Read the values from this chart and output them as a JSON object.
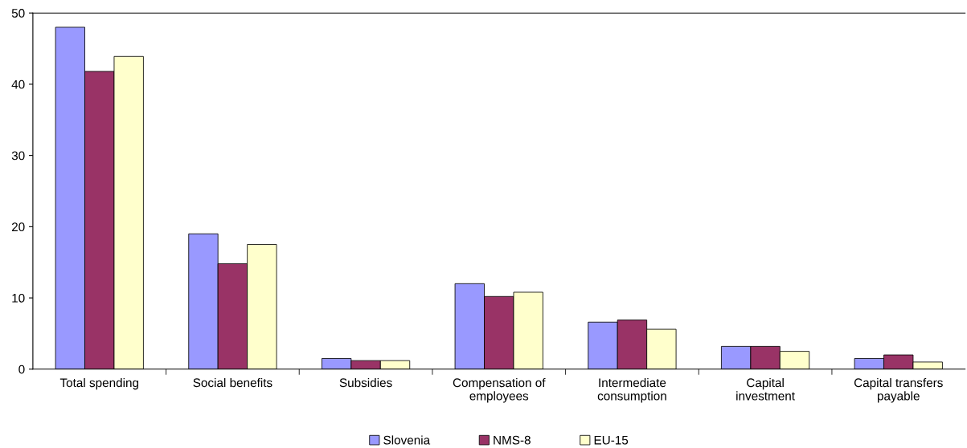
{
  "chart_data": {
    "type": "bar",
    "categories": [
      "Total spending",
      "Social benefits",
      "Subsidies",
      "Compensation of\nemployees",
      "Intermediate\nconsumption",
      "Capital\ninvestment",
      "Capital transfers\npayable"
    ],
    "series": [
      {
        "name": "Slovenia",
        "color": "#9999ff",
        "values": [
          48.0,
          19.0,
          1.5,
          12.0,
          6.6,
          3.2,
          1.5
        ]
      },
      {
        "name": "NMS-8",
        "color": "#993366",
        "values": [
          41.8,
          14.8,
          1.2,
          10.2,
          6.9,
          3.2,
          2.0
        ]
      },
      {
        "name": "EU-15",
        "color": "#ffffcc",
        "values": [
          43.9,
          17.5,
          1.2,
          10.8,
          5.6,
          2.5,
          1.0
        ]
      }
    ],
    "ylim": [
      0,
      50
    ],
    "yticks": [
      0,
      10,
      20,
      30,
      40,
      50
    ],
    "grid": false,
    "legend": "bottom"
  }
}
